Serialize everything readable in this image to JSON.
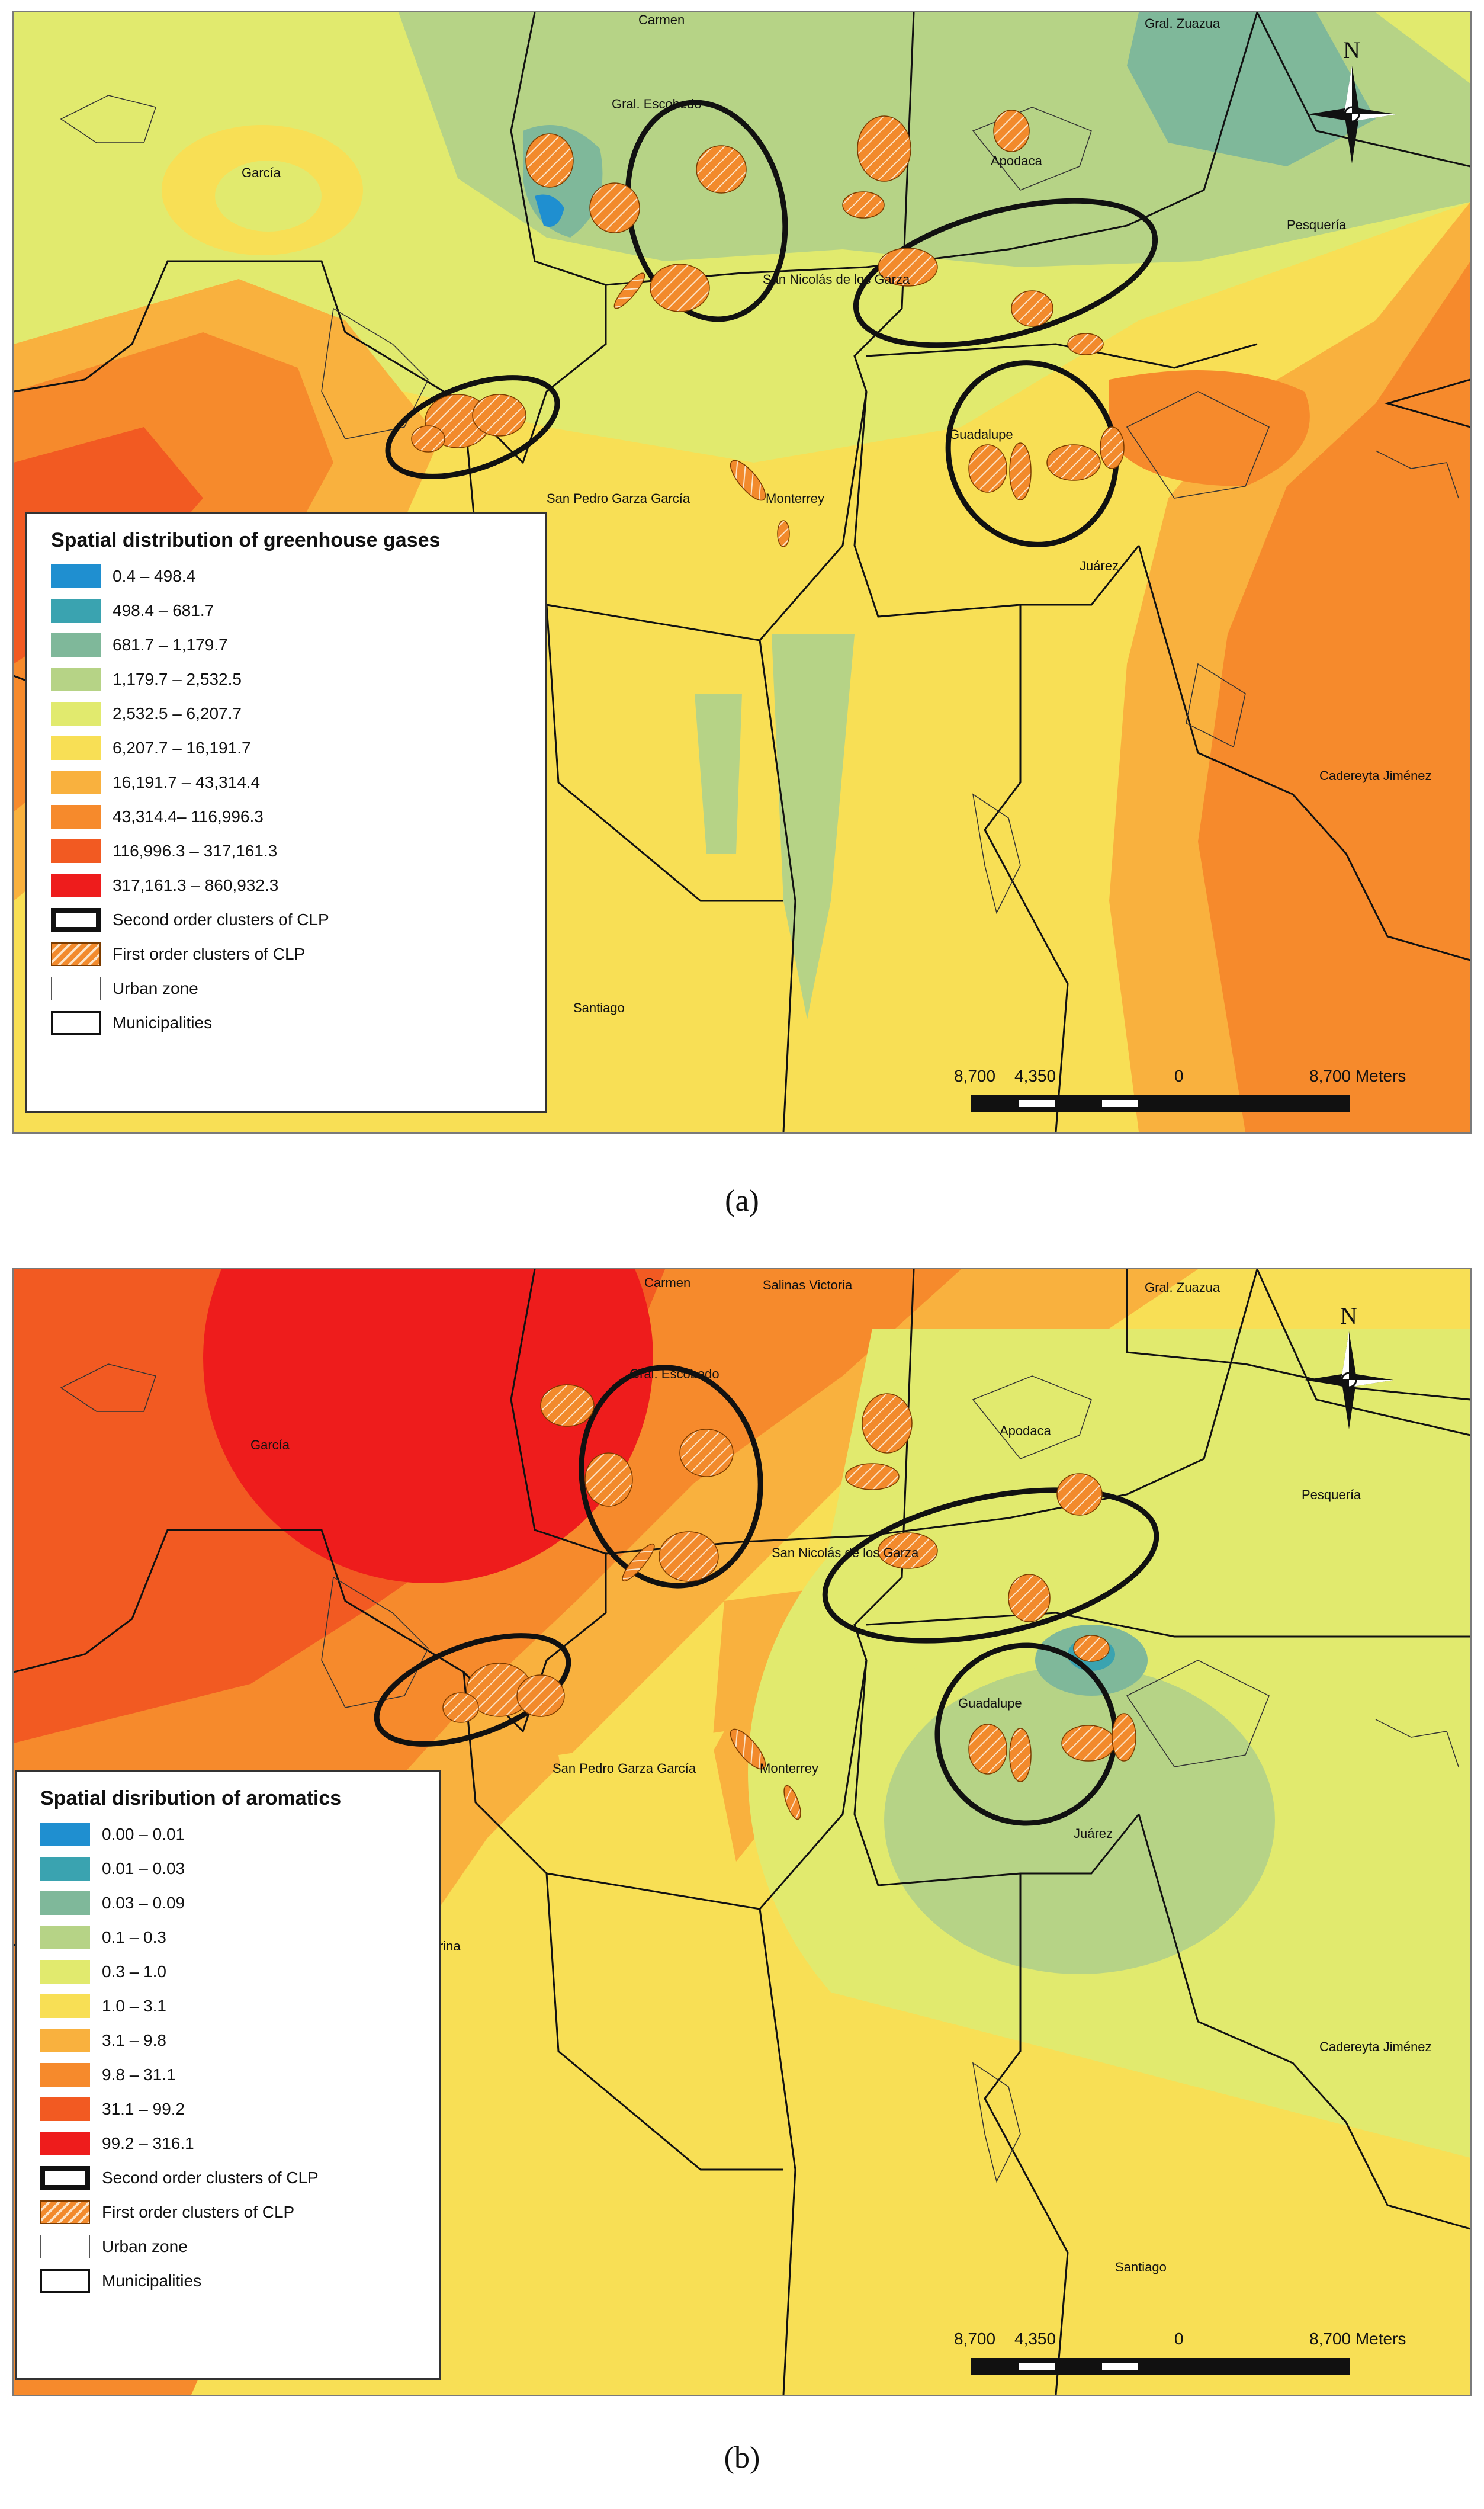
{
  "panel_a": {
    "legend": {
      "title": "Spatial distribution of greenhouse gases",
      "classes": [
        {
          "label": "0.4 – 498.4",
          "color": "#1f8fd0"
        },
        {
          "label": "498.4 – 681.7",
          "color": "#3aa3b0"
        },
        {
          "label": "681.7 – 1,179.7",
          "color": "#7fb89a"
        },
        {
          "label": "1,179.7 – 2,532.5",
          "color": "#b6d386"
        },
        {
          "label": "2,532.5 – 6,207.7",
          "color": "#e1ea6e"
        },
        {
          "label": "6,207.7 – 16,191.7",
          "color": "#f8df55"
        },
        {
          "label": "16,191.7 – 43,314.4",
          "color": "#f9b13e"
        },
        {
          "label": "43,314.4– 116,996.3",
          "color": "#f68a2c"
        },
        {
          "label": "116,996.3 – 317,161.3",
          "color": "#f25a22"
        },
        {
          "label": "317,161.3 – 860,932.3",
          "color": "#ee1c1c"
        }
      ],
      "symbols": [
        {
          "label": "Second order clusters of CLP",
          "kind": "second-order"
        },
        {
          "label": "First order clusters of CLP",
          "kind": "first-order"
        },
        {
          "label": "Urban zone",
          "kind": "urban"
        },
        {
          "label": "Municipalities",
          "kind": "municipality"
        }
      ]
    },
    "places": [
      "Carmen",
      "Gral. Zuazua",
      "Gral. Escobedo",
      "García",
      "Apodaca",
      "Pesquería",
      "San Nicolás de los Garza",
      "Guadalupe",
      "San Pedro Garza García",
      "Monterrey",
      "Juárez",
      "Cadereyta Jiménez",
      "Santiago"
    ],
    "scalebar": {
      "left": "8,700",
      "mid": "4,350",
      "zero": "0",
      "right": "8,700 Meters"
    },
    "north_label": "N",
    "caption": "(a)"
  },
  "panel_b": {
    "legend": {
      "title": "Spatial disribution of aromatics",
      "classes": [
        {
          "label": "0.00 – 0.01",
          "color": "#1f8fd0"
        },
        {
          "label": "0.01 – 0.03",
          "color": "#3aa3b0"
        },
        {
          "label": "0.03 – 0.09",
          "color": "#7fb89a"
        },
        {
          "label": "0.1 – 0.3",
          "color": "#b6d386"
        },
        {
          "label": "0.3 – 1.0",
          "color": "#e1ea6e"
        },
        {
          "label": "1.0 – 3.1",
          "color": "#f8df55"
        },
        {
          "label": "3.1 – 9.8",
          "color": "#f9b13e"
        },
        {
          "label": "9.8 – 31.1",
          "color": "#f68a2c"
        },
        {
          "label": "31.1 – 99.2",
          "color": "#f25a22"
        },
        {
          "label": "99.2 – 316.1",
          "color": "#ee1c1c"
        }
      ],
      "symbols": [
        {
          "label": "Second order clusters of CLP",
          "kind": "second-order"
        },
        {
          "label": "First order clusters of CLP",
          "kind": "first-order"
        },
        {
          "label": "Urban zone",
          "kind": "urban"
        },
        {
          "label": "Municipalities",
          "kind": "municipality"
        }
      ]
    },
    "places": [
      "Carmen",
      "Salinas Victoria",
      "Gral. Zuazua",
      "Gral. Escobedo",
      "García",
      "Apodaca",
      "Pesquería",
      "San Nicolás de los Garza",
      "Guadalupe",
      "San Pedro Garza García",
      "Monterrey",
      "Juárez",
      "Cadereyta Jiménez",
      "Santiago",
      "rina"
    ],
    "scalebar": {
      "left": "8,700",
      "mid": "4,350",
      "zero": "0",
      "right": "8,700 Meters"
    },
    "north_label": "N",
    "caption": "(b)"
  }
}
